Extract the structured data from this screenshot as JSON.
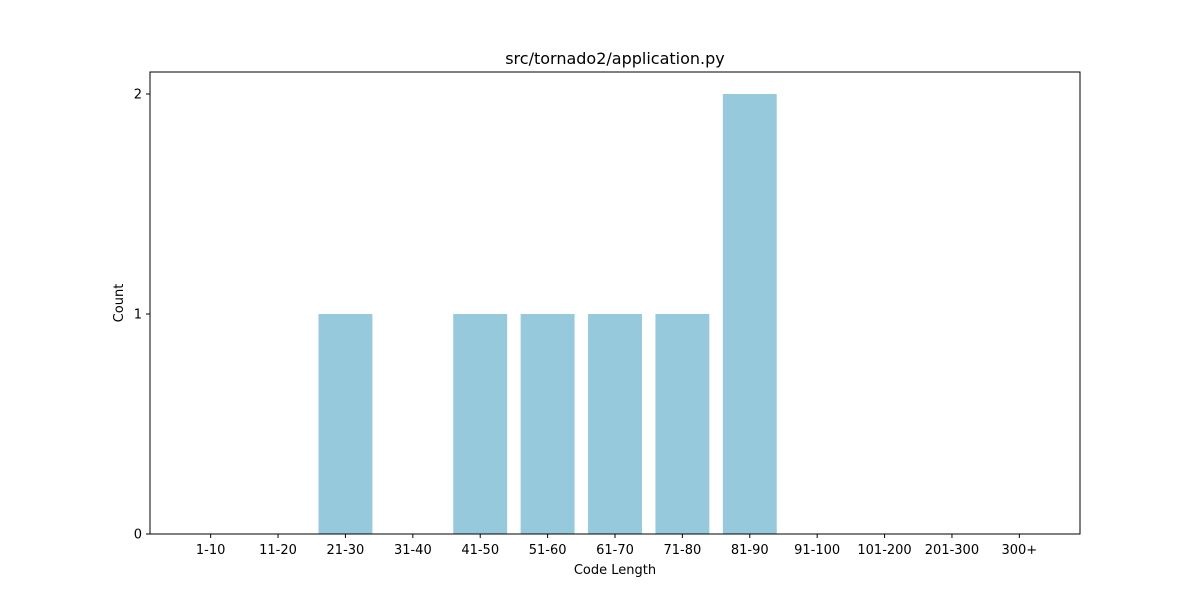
{
  "chart_data": {
    "type": "bar",
    "title": "src/tornado2/application.py",
    "xlabel": "Code Length",
    "ylabel": "Count",
    "categories": [
      "1-10",
      "11-20",
      "21-30",
      "31-40",
      "41-50",
      "51-60",
      "61-70",
      "71-80",
      "81-90",
      "91-100",
      "101-200",
      "201-300",
      "300+"
    ],
    "values": [
      0,
      0,
      1,
      0,
      1,
      1,
      1,
      1,
      2,
      0,
      0,
      0,
      0
    ],
    "ylim": [
      0,
      2.1
    ],
    "yticks": [
      0,
      1,
      2
    ],
    "grid": false,
    "legend": "none",
    "bar_color": "#96c9dc"
  }
}
